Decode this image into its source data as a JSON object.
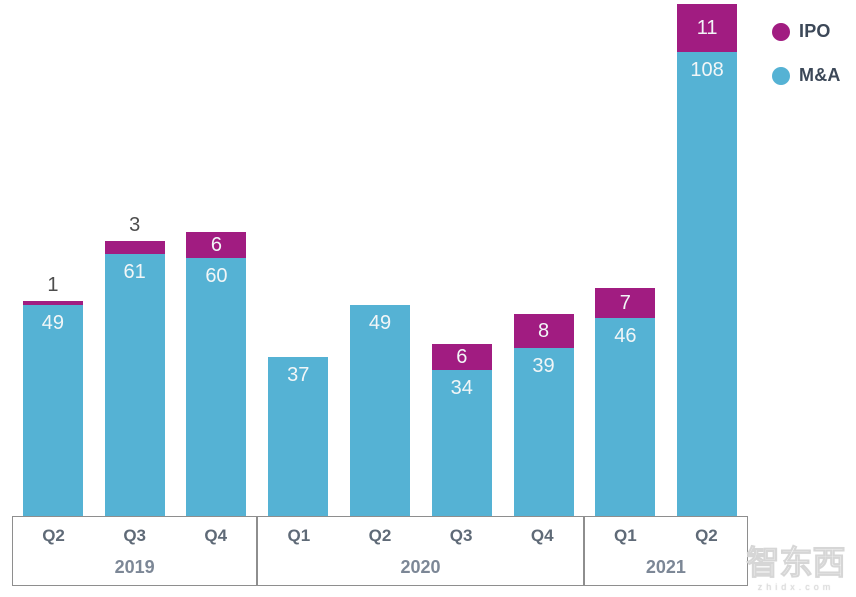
{
  "chart_data": {
    "type": "bar",
    "stacked": true,
    "title": "",
    "xlabel": "",
    "ylabel": "",
    "ylim": [
      0,
      120
    ],
    "grid": false,
    "legend_position": "top-right",
    "x_groups": [
      {
        "year": "2019",
        "quarters": [
          "Q2",
          "Q3",
          "Q4"
        ]
      },
      {
        "year": "2020",
        "quarters": [
          "Q1",
          "Q2",
          "Q3",
          "Q4"
        ]
      },
      {
        "year": "2021",
        "quarters": [
          "Q1",
          "Q2"
        ]
      }
    ],
    "categories": [
      "2019 Q2",
      "2019 Q3",
      "2019 Q4",
      "2020 Q1",
      "2020 Q2",
      "2020 Q3",
      "2020 Q4",
      "2021 Q1",
      "2021 Q2"
    ],
    "series": [
      {
        "name": "M&A",
        "color": "#55b2d4",
        "values": [
          49,
          61,
          60,
          37,
          49,
          34,
          39,
          46,
          108
        ]
      },
      {
        "name": "IPO",
        "color": "#a11c81",
        "values": [
          1,
          3,
          6,
          0,
          0,
          6,
          8,
          7,
          11
        ]
      }
    ],
    "totals": [
      50,
      64,
      66,
      37,
      49,
      40,
      47,
      53,
      119
    ],
    "value_labels": "on-segments"
  },
  "legend": {
    "items": [
      {
        "label": "IPO",
        "color": "#a11c81"
      },
      {
        "label": "M&A",
        "color": "#55b2d4"
      }
    ]
  },
  "watermark": {
    "title": "智东西",
    "subtitle": "zhidx.com"
  },
  "colors": {
    "ma_bar": "#55b2d4",
    "ipo_bar": "#a11c81",
    "bar_value_label": "#f2f6f7",
    "outside_value_label": "#4d4d4d",
    "quarter_label": "#5f6a77",
    "year_label": "#7c8796",
    "axis_border": "#8e8e8e",
    "legend_text": "#3c4858",
    "background": "#ffffff"
  }
}
